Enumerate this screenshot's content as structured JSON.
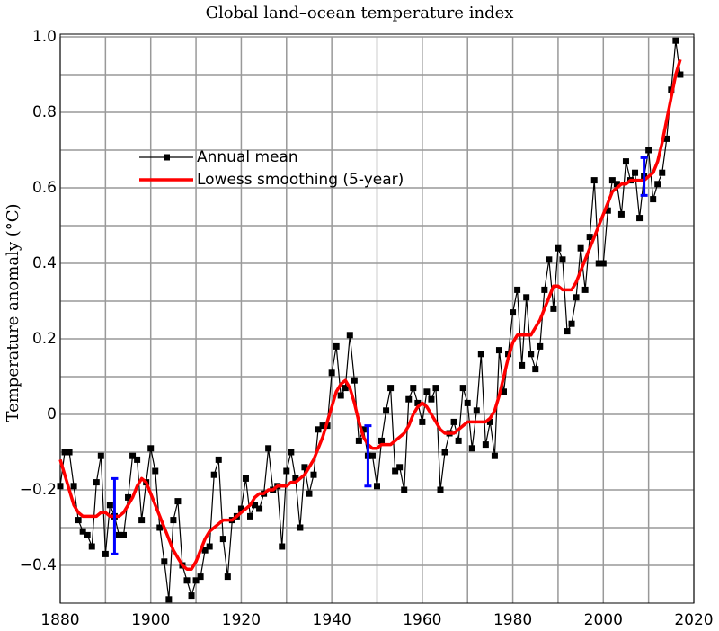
{
  "chart_data": {
    "type": "line",
    "title": "Global land–ocean temperature index",
    "y_label": "Temperature anomaly (°C)",
    "x": [
      1880,
      1881,
      1882,
      1883,
      1884,
      1885,
      1886,
      1887,
      1888,
      1889,
      1890,
      1891,
      1892,
      1893,
      1894,
      1895,
      1896,
      1897,
      1898,
      1899,
      1900,
      1901,
      1902,
      1903,
      1904,
      1905,
      1906,
      1907,
      1908,
      1909,
      1910,
      1911,
      1912,
      1913,
      1914,
      1915,
      1916,
      1917,
      1918,
      1919,
      1920,
      1921,
      1922,
      1923,
      1924,
      1925,
      1926,
      1927,
      1928,
      1929,
      1930,
      1931,
      1932,
      1933,
      1934,
      1935,
      1936,
      1937,
      1938,
      1939,
      1940,
      1941,
      1942,
      1943,
      1944,
      1945,
      1946,
      1947,
      1948,
      1949,
      1950,
      1951,
      1952,
      1953,
      1954,
      1955,
      1956,
      1957,
      1958,
      1959,
      1960,
      1961,
      1962,
      1963,
      1964,
      1965,
      1966,
      1967,
      1968,
      1969,
      1970,
      1971,
      1972,
      1973,
      1974,
      1975,
      1976,
      1977,
      1978,
      1979,
      1980,
      1981,
      1982,
      1983,
      1984,
      1985,
      1986,
      1987,
      1988,
      1989,
      1990,
      1991,
      1992,
      1993,
      1994,
      1995,
      1996,
      1997,
      1998,
      1999,
      2000,
      2001,
      2002,
      2003,
      2004,
      2005,
      2006,
      2007,
      2008,
      2009,
      2010,
      2011,
      2012,
      2013,
      2014,
      2015,
      2016,
      2017
    ],
    "series": [
      {
        "name": "Annual mean",
        "color": "#000000",
        "markers": true,
        "values": [
          -0.19,
          -0.1,
          -0.1,
          -0.19,
          -0.28,
          -0.31,
          -0.32,
          -0.35,
          -0.18,
          -0.11,
          -0.37,
          -0.24,
          -0.27,
          -0.32,
          -0.32,
          -0.22,
          -0.11,
          -0.12,
          -0.28,
          -0.18,
          -0.09,
          -0.15,
          -0.3,
          -0.39,
          -0.49,
          -0.28,
          -0.23,
          -0.4,
          -0.44,
          -0.48,
          -0.44,
          -0.43,
          -0.36,
          -0.35,
          -0.16,
          -0.12,
          -0.33,
          -0.43,
          -0.28,
          -0.27,
          -0.25,
          -0.17,
          -0.27,
          -0.24,
          -0.25,
          -0.21,
          -0.09,
          -0.2,
          -0.19,
          -0.35,
          -0.15,
          -0.1,
          -0.17,
          -0.3,
          -0.14,
          -0.21,
          -0.16,
          -0.04,
          -0.03,
          -0.03,
          0.11,
          0.18,
          0.05,
          0.07,
          0.21,
          0.09,
          -0.07,
          -0.04,
          -0.11,
          -0.11,
          -0.19,
          -0.07,
          0.01,
          0.07,
          -0.15,
          -0.14,
          -0.2,
          0.04,
          0.07,
          0.03,
          -0.02,
          0.06,
          0.04,
          0.07,
          -0.2,
          -0.1,
          -0.05,
          -0.02,
          -0.07,
          0.07,
          0.03,
          -0.09,
          0.01,
          0.16,
          -0.08,
          -0.02,
          -0.11,
          0.17,
          0.06,
          0.16,
          0.27,
          0.33,
          0.13,
          0.31,
          0.16,
          0.12,
          0.18,
          0.33,
          0.41,
          0.28,
          0.44,
          0.41,
          0.22,
          0.24,
          0.31,
          0.44,
          0.33,
          0.47,
          0.62,
          0.4,
          0.4,
          0.54,
          0.62,
          0.61,
          0.53,
          0.67,
          0.62,
          0.64,
          0.52,
          0.63,
          0.7,
          0.57,
          0.61,
          0.64,
          0.73,
          0.86,
          0.99,
          0.9
        ]
      },
      {
        "name": "Lowess smoothing (5-year)",
        "color": "#ff0000",
        "markers": false,
        "values": [
          -0.12,
          -0.16,
          -0.2,
          -0.24,
          -0.26,
          -0.27,
          -0.27,
          -0.27,
          -0.27,
          -0.26,
          -0.26,
          -0.27,
          -0.27,
          -0.27,
          -0.26,
          -0.24,
          -0.22,
          -0.19,
          -0.17,
          -0.18,
          -0.21,
          -0.24,
          -0.27,
          -0.3,
          -0.33,
          -0.36,
          -0.38,
          -0.4,
          -0.41,
          -0.41,
          -0.39,
          -0.36,
          -0.33,
          -0.31,
          -0.3,
          -0.29,
          -0.28,
          -0.28,
          -0.28,
          -0.27,
          -0.26,
          -0.25,
          -0.24,
          -0.22,
          -0.21,
          -0.21,
          -0.2,
          -0.2,
          -0.19,
          -0.19,
          -0.19,
          -0.18,
          -0.18,
          -0.17,
          -0.16,
          -0.14,
          -0.12,
          -0.09,
          -0.06,
          -0.02,
          0.02,
          0.06,
          0.08,
          0.09,
          0.07,
          0.03,
          -0.02,
          -0.06,
          -0.08,
          -0.09,
          -0.09,
          -0.08,
          -0.08,
          -0.08,
          -0.07,
          -0.06,
          -0.05,
          -0.03,
          0.0,
          0.02,
          0.03,
          0.02,
          0.0,
          -0.02,
          -0.04,
          -0.05,
          -0.05,
          -0.05,
          -0.04,
          -0.03,
          -0.02,
          -0.02,
          -0.02,
          -0.02,
          -0.02,
          -0.01,
          0.01,
          0.05,
          0.1,
          0.15,
          0.19,
          0.21,
          0.21,
          0.21,
          0.21,
          0.23,
          0.25,
          0.28,
          0.31,
          0.34,
          0.34,
          0.33,
          0.33,
          0.33,
          0.35,
          0.38,
          0.41,
          0.44,
          0.47,
          0.5,
          0.53,
          0.56,
          0.59,
          0.6,
          0.61,
          0.61,
          0.62,
          0.62,
          0.62,
          0.62,
          0.63,
          0.64,
          0.67,
          0.72,
          0.78,
          0.84,
          0.9,
          0.94
        ]
      }
    ],
    "error_bars": {
      "color": "#0000ff",
      "x": [
        1892,
        1948,
        2009
      ],
      "values": [
        -0.27,
        -0.11,
        0.63
      ],
      "errors": [
        0.1,
        0.08,
        0.05
      ]
    },
    "xlim": [
      1880,
      2020
    ],
    "xticks": [
      1880,
      1900,
      1920,
      1940,
      1960,
      1980,
      2000,
      2020
    ],
    "ylim": [
      -0.5,
      1.0
    ],
    "yticks": [
      {
        "value": 1,
        "label": "1.0"
      },
      0.8,
      0.6,
      0.4,
      0.2,
      0,
      {
        "value": -0.2,
        "label": "−0.2"
      },
      {
        "value": -0.4,
        "label": "−0.4"
      }
    ],
    "grid": true,
    "legend": "upper left"
  }
}
